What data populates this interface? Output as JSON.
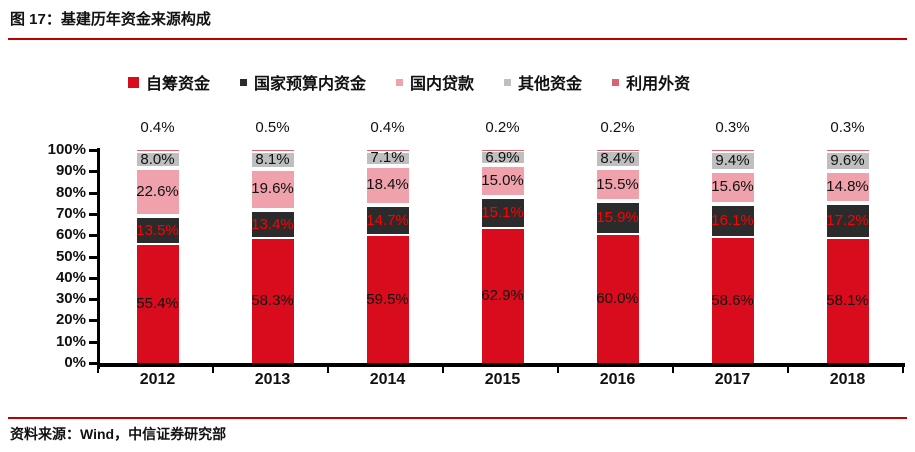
{
  "header": {
    "title": "图 17：基建历年资金来源构成"
  },
  "source": {
    "text": "资料来源：Wind，中信证券研究部"
  },
  "colors": {
    "accent_rule": "#c00000",
    "axis": "#000000",
    "self_raised": "#d80c1d",
    "budget": "#2b2b2b",
    "domestic_loan": "#efa2ab",
    "other": "#bfbfbf",
    "foreign": "#d96570",
    "budget_value_text": "#ff0000",
    "default_value_text": "#111111"
  },
  "chart_data": {
    "type": "bar",
    "stacked": true,
    "title": "基建历年资金来源构成",
    "xlabel": "",
    "ylabel": "",
    "ylim": [
      0,
      100
    ],
    "grid": false,
    "legend_position": "top",
    "categories": [
      "2012",
      "2013",
      "2014",
      "2015",
      "2016",
      "2017",
      "2018"
    ],
    "y_ticks": [
      "100%",
      "90%",
      "80%",
      "70%",
      "60%",
      "50%",
      "40%",
      "30%",
      "20%",
      "10%",
      "0%"
    ],
    "series": [
      {
        "name": "自筹资金",
        "color_key": "self_raised",
        "values": [
          55.4,
          58.3,
          59.5,
          62.9,
          60.0,
          58.6,
          58.1
        ]
      },
      {
        "name": "国家预算内资金",
        "color_key": "budget",
        "values": [
          13.5,
          13.4,
          14.7,
          15.1,
          15.9,
          16.1,
          17.2
        ]
      },
      {
        "name": "国内贷款",
        "color_key": "domestic_loan",
        "values": [
          22.6,
          19.6,
          18.4,
          15.0,
          15.5,
          15.6,
          14.8
        ]
      },
      {
        "name": "其他资金",
        "color_key": "other",
        "values": [
          8.0,
          8.1,
          7.1,
          6.9,
          8.4,
          9.4,
          9.6
        ]
      },
      {
        "name": "利用外资",
        "color_key": "foreign",
        "values": [
          0.4,
          0.5,
          0.4,
          0.2,
          0.2,
          0.3,
          0.3
        ]
      }
    ],
    "value_label_format": "{value}%"
  }
}
